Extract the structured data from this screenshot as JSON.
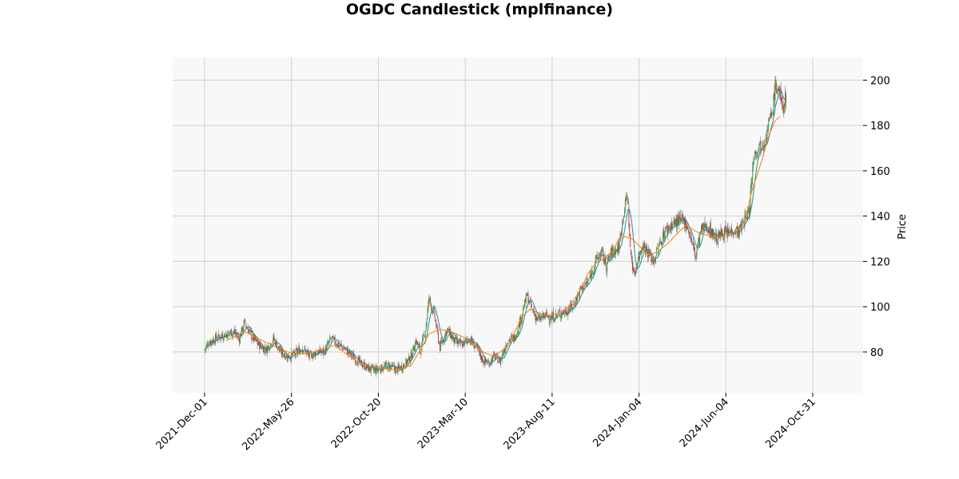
{
  "chart_data": {
    "type": "candlestick",
    "title": "OGDC Candlestick (mplfinance)",
    "xlabel": "",
    "ylabel": "Price",
    "ylim": [
      62,
      210
    ],
    "grid": true,
    "legend": "none",
    "y_ticks": [
      80,
      100,
      120,
      140,
      160,
      180,
      200
    ],
    "x_ticks": [
      "2021-Dec-01",
      "2022-May-26",
      "2022-Oct-20",
      "2023-Mar-10",
      "2023-Aug-11",
      "2024-Jan-04",
      "2024-Jun-04",
      "2024-Oct-31"
    ],
    "x_tick_index": [
      0,
      120,
      240,
      360,
      480,
      600,
      720,
      840
    ],
    "n_sessions": 862,
    "colors": {
      "up": "#2ca02c",
      "down": "#d62728",
      "short_ma": "#1f8ea0",
      "long_ma": "#ff7f0e",
      "background": "#f8f8f8",
      "grid": "#d0d0d0"
    },
    "price_path": [
      [
        0,
        81
      ],
      [
        5,
        84
      ],
      [
        15,
        86
      ],
      [
        30,
        88
      ],
      [
        40,
        89
      ],
      [
        48,
        86
      ],
      [
        55,
        93
      ],
      [
        65,
        87
      ],
      [
        75,
        83
      ],
      [
        85,
        81
      ],
      [
        95,
        86
      ],
      [
        105,
        80
      ],
      [
        115,
        78
      ],
      [
        125,
        79
      ],
      [
        135,
        82
      ],
      [
        145,
        78
      ],
      [
        155,
        80
      ],
      [
        165,
        80
      ],
      [
        175,
        86
      ],
      [
        185,
        83
      ],
      [
        195,
        81
      ],
      [
        205,
        78
      ],
      [
        215,
        75
      ],
      [
        225,
        73
      ],
      [
        235,
        72
      ],
      [
        245,
        73
      ],
      [
        255,
        74
      ],
      [
        265,
        72
      ],
      [
        275,
        74
      ],
      [
        285,
        78
      ],
      [
        292,
        85
      ],
      [
        298,
        80
      ],
      [
        305,
        90
      ],
      [
        310,
        104
      ],
      [
        318,
        95
      ],
      [
        325,
        82
      ],
      [
        335,
        90
      ],
      [
        345,
        85
      ],
      [
        355,
        83
      ],
      [
        365,
        86
      ],
      [
        375,
        82
      ],
      [
        385,
        76
      ],
      [
        392,
        75
      ],
      [
        400,
        78
      ],
      [
        408,
        76
      ],
      [
        418,
        85
      ],
      [
        428,
        86
      ],
      [
        438,
        96
      ],
      [
        445,
        105
      ],
      [
        452,
        99
      ],
      [
        460,
        94
      ],
      [
        470,
        96
      ],
      [
        480,
        95
      ],
      [
        490,
        97
      ],
      [
        500,
        98
      ],
      [
        510,
        101
      ],
      [
        520,
        108
      ],
      [
        530,
        111
      ],
      [
        540,
        120
      ],
      [
        548,
        124
      ],
      [
        555,
        118
      ],
      [
        562,
        124
      ],
      [
        572,
        126
      ],
      [
        578,
        140
      ],
      [
        584,
        150
      ],
      [
        588,
        125
      ],
      [
        593,
        114
      ],
      [
        598,
        120
      ],
      [
        605,
        128
      ],
      [
        612,
        124
      ],
      [
        620,
        120
      ],
      [
        628,
        127
      ],
      [
        635,
        133
      ],
      [
        645,
        136
      ],
      [
        655,
        138
      ],
      [
        665,
        137
      ],
      [
        672,
        130
      ],
      [
        678,
        122
      ],
      [
        685,
        133
      ],
      [
        692,
        136
      ],
      [
        700,
        133
      ],
      [
        708,
        130
      ],
      [
        715,
        133
      ],
      [
        722,
        132
      ],
      [
        730,
        134
      ],
      [
        738,
        133
      ],
      [
        745,
        138
      ],
      [
        752,
        142
      ],
      [
        758,
        166
      ],
      [
        763,
        170
      ],
      [
        770,
        172
      ],
      [
        776,
        176
      ],
      [
        780,
        182
      ],
      [
        784,
        185
      ],
      [
        788,
        197
      ],
      [
        793,
        196
      ],
      [
        798,
        187
      ],
      [
        803,
        193
      ]
    ],
    "long_ma_path": [
      [
        30,
        85
      ],
      [
        55,
        89
      ],
      [
        80,
        85
      ],
      [
        100,
        82
      ],
      [
        115,
        80
      ],
      [
        130,
        79
      ],
      [
        150,
        80
      ],
      [
        170,
        82
      ],
      [
        180,
        83
      ],
      [
        200,
        78
      ],
      [
        215,
        75
      ],
      [
        240,
        73
      ],
      [
        265,
        72
      ],
      [
        285,
        74
      ],
      [
        300,
        82
      ],
      [
        310,
        88
      ],
      [
        325,
        90
      ],
      [
        340,
        89
      ],
      [
        355,
        87
      ],
      [
        370,
        84
      ],
      [
        385,
        80
      ],
      [
        400,
        78
      ],
      [
        420,
        83
      ],
      [
        430,
        90
      ],
      [
        440,
        96
      ],
      [
        450,
        99
      ],
      [
        470,
        96
      ],
      [
        490,
        97
      ],
      [
        500,
        99
      ],
      [
        510,
        103
      ],
      [
        520,
        108
      ],
      [
        530,
        115
      ],
      [
        540,
        119
      ],
      [
        550,
        121
      ],
      [
        565,
        125
      ],
      [
        572,
        130
      ],
      [
        580,
        131
      ],
      [
        590,
        130
      ],
      [
        600,
        127
      ],
      [
        612,
        123
      ],
      [
        625,
        124
      ],
      [
        640,
        128
      ],
      [
        655,
        133
      ],
      [
        665,
        136
      ],
      [
        680,
        133
      ],
      [
        700,
        131
      ],
      [
        715,
        131
      ],
      [
        730,
        132
      ],
      [
        745,
        136
      ],
      [
        755,
        150
      ],
      [
        770,
        165
      ],
      [
        780,
        176
      ],
      [
        788,
        182
      ],
      [
        795,
        184
      ]
    ]
  }
}
